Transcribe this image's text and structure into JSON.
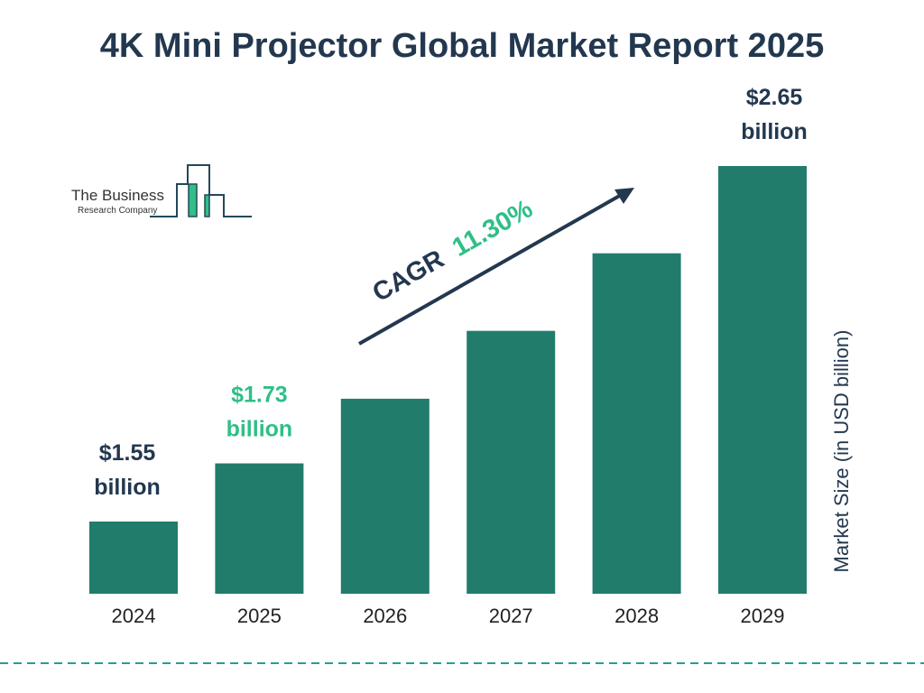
{
  "title": "4K Mini Projector Global Market Report 2025",
  "logo": {
    "line1": "The Business",
    "line2": "Research Company"
  },
  "cagr": {
    "label": "CAGR",
    "value": "11.30%"
  },
  "colors": {
    "bar": "#217c6c",
    "text": "#23384f",
    "highlight": "#2fbf87"
  },
  "chart_data": {
    "type": "bar",
    "categories": [
      "2024",
      "2025",
      "2026",
      "2027",
      "2028",
      "2029"
    ],
    "values": [
      1.55,
      1.73,
      1.93,
      2.14,
      2.38,
      2.65
    ],
    "data_labels": [
      {
        "index": 0,
        "line1": "$1.55",
        "line2": "billion"
      },
      {
        "index": 1,
        "line1": "$1.73",
        "line2": "billion",
        "highlight": true
      },
      {
        "index": 5,
        "line1": "$2.65",
        "line2": "billion"
      }
    ],
    "ylabel": "Market Size (in USD billion)",
    "xlabel": "",
    "grid": false
  }
}
